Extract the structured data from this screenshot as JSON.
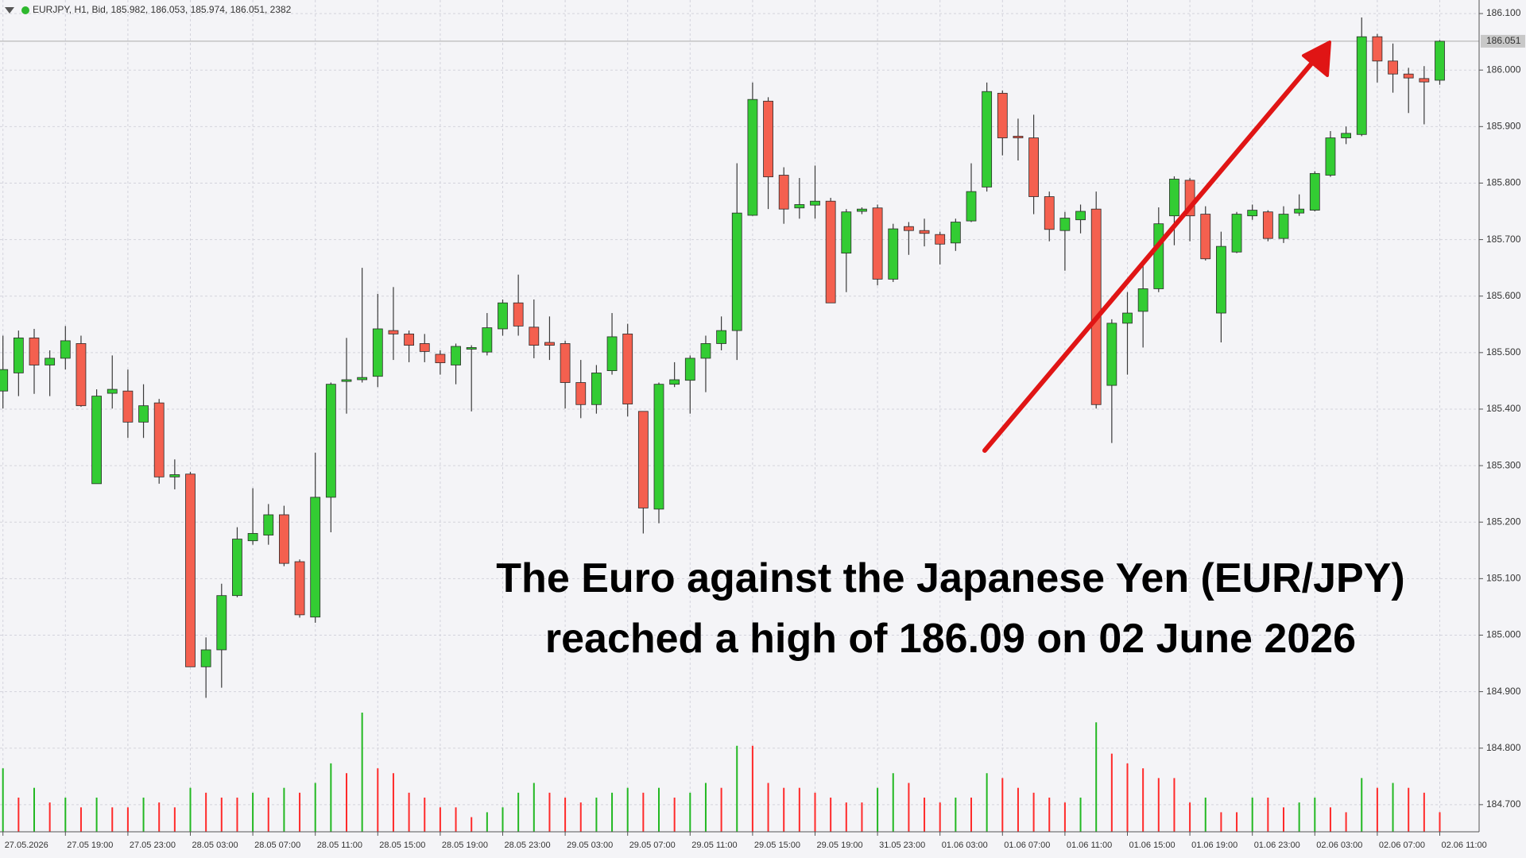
{
  "chart_data": {
    "type": "candlestick",
    "title": "EURJPY, H1, Bid, 185.982, 186.053, 185.974, 186.051, 2382",
    "annotation": "The Euro against the Japanese Yen (EUR/JPY) reached a high of 186.09 on 02 June 2026",
    "categories": [
      "27.05.2026",
      null,
      null,
      null,
      "27.05 19:00",
      null,
      null,
      null,
      "27.05 23:00",
      null,
      null,
      null,
      "28.05 03:00",
      null,
      null,
      null,
      "28.05 07:00",
      null,
      null,
      null,
      "28.05 11:00",
      null,
      null,
      null,
      "28.05 15:00",
      null,
      null,
      null,
      "28.05 19:00",
      null,
      null,
      null,
      "28.05 23:00",
      null,
      null,
      null,
      "29.05 03:00",
      null,
      null,
      null,
      "29.05 07:00",
      null,
      null,
      null,
      "29.05 11:00",
      null,
      null,
      null,
      "29.05 15:00",
      null,
      null,
      null,
      "29.05 19:00",
      null,
      null,
      null,
      "31.05 23:00",
      null,
      null,
      null,
      "01.06 03:00",
      null,
      null,
      null,
      "01.06 07:00",
      null,
      null,
      null,
      "01.06 11:00",
      null,
      null,
      null,
      "01.06 15:00",
      null,
      null,
      null,
      "01.06 19:00",
      null,
      null,
      null,
      "01.06 23:00",
      null,
      null,
      null,
      "02.06 03:00",
      null,
      null,
      null,
      "02.06 07:00",
      null,
      null,
      null,
      "02.06 11:00"
    ],
    "open": [
      185.432,
      185.464,
      185.526,
      185.478,
      185.49,
      185.516,
      185.268,
      185.428,
      185.432,
      185.377,
      185.411,
      185.28,
      185.285,
      184.944,
      184.974,
      185.07,
      185.167,
      185.177,
      185.213,
      185.13,
      185.032,
      185.244,
      185.449,
      185.452,
      185.458,
      185.539,
      185.533,
      185.516,
      185.497,
      185.478,
      185.506,
      185.501,
      185.542,
      185.588,
      185.545,
      185.518,
      185.516,
      185.447,
      185.408,
      185.468,
      185.533,
      185.396,
      185.223,
      185.444,
      185.451,
      185.49,
      185.516,
      185.539,
      185.743,
      185.945,
      185.814,
      185.756,
      185.761,
      185.768,
      185.676,
      185.75,
      185.756,
      185.63,
      185.723,
      185.716,
      185.709,
      185.694,
      185.733,
      185.793,
      185.959,
      185.883,
      185.88,
      185.776,
      185.716,
      185.735,
      185.754,
      185.442,
      185.552,
      185.573,
      185.613,
      185.742,
      185.805,
      185.745,
      185.57,
      185.678,
      185.742,
      185.749,
      185.702,
      185.747,
      185.752,
      185.814,
      185.88,
      185.886,
      186.059,
      186.016,
      185.993,
      185.985,
      185.982
    ],
    "high": [
      185.53,
      185.539,
      185.542,
      185.504,
      185.547,
      185.53,
      185.435,
      185.495,
      185.47,
      185.444,
      185.418,
      185.311,
      185.289,
      184.996,
      185.091,
      185.191,
      185.26,
      185.232,
      185.229,
      185.134,
      185.323,
      185.447,
      185.526,
      185.65,
      185.604,
      185.616,
      185.539,
      185.533,
      185.504,
      185.516,
      185.513,
      185.57,
      185.594,
      185.638,
      185.594,
      185.564,
      185.521,
      185.487,
      185.478,
      185.57,
      185.551,
      185.396,
      185.447,
      185.483,
      185.495,
      185.53,
      185.564,
      185.835,
      185.978,
      185.952,
      185.828,
      185.809,
      185.831,
      185.774,
      185.754,
      185.757,
      185.762,
      185.728,
      185.731,
      185.737,
      185.714,
      185.737,
      185.835,
      185.978,
      185.964,
      185.914,
      185.921,
      185.785,
      185.749,
      185.762,
      185.785,
      185.559,
      185.607,
      185.656,
      185.757,
      185.812,
      185.809,
      185.759,
      185.714,
      185.749,
      185.762,
      185.752,
      185.759,
      185.78,
      185.821,
      185.892,
      185.9,
      186.093,
      186.064,
      186.047,
      186.004,
      186.007,
      186.053
    ],
    "low": [
      185.401,
      185.423,
      185.427,
      185.423,
      185.47,
      185.404,
      185.268,
      185.401,
      185.349,
      185.349,
      185.268,
      185.258,
      184.944,
      184.889,
      184.907,
      185.067,
      185.16,
      185.16,
      185.122,
      185.031,
      185.022,
      185.182,
      185.392,
      185.447,
      185.439,
      185.487,
      185.483,
      185.483,
      185.461,
      185.444,
      185.396,
      185.495,
      185.53,
      185.53,
      185.49,
      185.487,
      185.401,
      185.384,
      185.392,
      185.461,
      185.387,
      185.18,
      185.198,
      185.439,
      185.392,
      185.43,
      185.504,
      185.487,
      185.742,
      185.754,
      185.728,
      185.737,
      185.737,
      185.588,
      185.607,
      185.745,
      185.619,
      185.625,
      185.673,
      185.688,
      185.656,
      185.68,
      185.731,
      185.785,
      185.849,
      185.84,
      185.745,
      185.697,
      185.645,
      185.711,
      185.401,
      185.34,
      185.461,
      185.509,
      185.607,
      185.69,
      185.697,
      185.663,
      185.518,
      185.676,
      185.735,
      185.697,
      185.694,
      185.742,
      185.75,
      185.811,
      185.869,
      185.883,
      185.978,
      185.96,
      185.924,
      185.904,
      185.974
    ],
    "close": [
      185.47,
      185.526,
      185.478,
      185.49,
      185.521,
      185.406,
      185.423,
      185.435,
      185.377,
      185.406,
      185.28,
      185.284,
      184.944,
      184.974,
      185.07,
      185.17,
      185.18,
      185.213,
      185.127,
      185.036,
      185.244,
      185.444,
      185.452,
      185.456,
      185.542,
      185.533,
      185.513,
      185.502,
      185.482,
      185.511,
      185.509,
      185.544,
      185.588,
      185.547,
      185.513,
      185.513,
      185.447,
      185.408,
      185.464,
      185.528,
      185.409,
      185.225,
      185.444,
      185.452,
      185.49,
      185.516,
      185.539,
      185.747,
      185.948,
      185.811,
      185.754,
      185.762,
      185.768,
      185.588,
      185.749,
      185.754,
      185.63,
      185.719,
      185.716,
      185.711,
      185.692,
      185.731,
      185.785,
      185.962,
      185.88,
      185.88,
      185.776,
      185.718,
      185.738,
      185.75,
      185.408,
      185.552,
      185.57,
      185.613,
      185.728,
      185.807,
      185.742,
      185.666,
      185.688,
      185.745,
      185.752,
      185.702,
      185.745,
      185.754,
      185.817,
      185.88,
      185.888,
      186.059,
      186.016,
      185.993,
      185.986,
      185.979,
      186.051
    ],
    "volume": [
      7735,
      4165,
      5355,
      3570,
      4165,
      2975,
      4165,
      2975,
      2975,
      4165,
      3570,
      2975,
      5355,
      4760,
      4165,
      4165,
      4760,
      4165,
      5355,
      4760,
      5950,
      8330,
      7140,
      14518,
      7735,
      7140,
      4760,
      4165,
      2975,
      2975,
      1785,
      2380,
      2975,
      4760,
      5950,
      4760,
      4165,
      3570,
      4165,
      4760,
      5355,
      4760,
      5355,
      4165,
      4760,
      5950,
      5355,
      10472,
      10472,
      5950,
      5355,
      5355,
      4760,
      4165,
      3570,
      3570,
      5355,
      7140,
      5950,
      4165,
      3570,
      4165,
      4165,
      7140,
      6545,
      5355,
      4760,
      4165,
      3570,
      4165,
      13328,
      9520,
      8330,
      7735,
      6545,
      6545,
      3570,
      4165,
      2380,
      2380,
      4165,
      4165,
      2975,
      3570,
      4165,
      2975,
      2380,
      6545,
      5355,
      5950,
      5355,
      4760,
      2382
    ],
    "last_price": 186.051,
    "ylim": [
      184.652,
      186.124
    ],
    "yticks": [
      {
        "value": 184.7,
        "label": "184.700"
      },
      {
        "value": 184.8,
        "label": "184.800"
      },
      {
        "value": 184.9,
        "label": "184.900"
      },
      {
        "value": 185.0,
        "label": "185.000"
      },
      {
        "value": 185.1,
        "label": "185.100"
      },
      {
        "value": 185.2,
        "label": "185.200"
      },
      {
        "value": 185.3,
        "label": "185.300"
      },
      {
        "value": 185.4,
        "label": "185.400"
      },
      {
        "value": 185.5,
        "label": "185.500"
      },
      {
        "value": 185.6,
        "label": "185.600"
      },
      {
        "value": 185.7,
        "label": "185.700"
      },
      {
        "value": 185.8,
        "label": "185.800"
      },
      {
        "value": 185.9,
        "label": "185.900"
      },
      {
        "value": 186.0,
        "label": "186.000"
      },
      {
        "value": 186.1,
        "label": "186.100"
      }
    ],
    "grid": true,
    "up_color": "#33cc33",
    "down_color": "#f4604f",
    "volume_up_color": "#22b822",
    "volume_down_color": "#ff2a2a"
  }
}
